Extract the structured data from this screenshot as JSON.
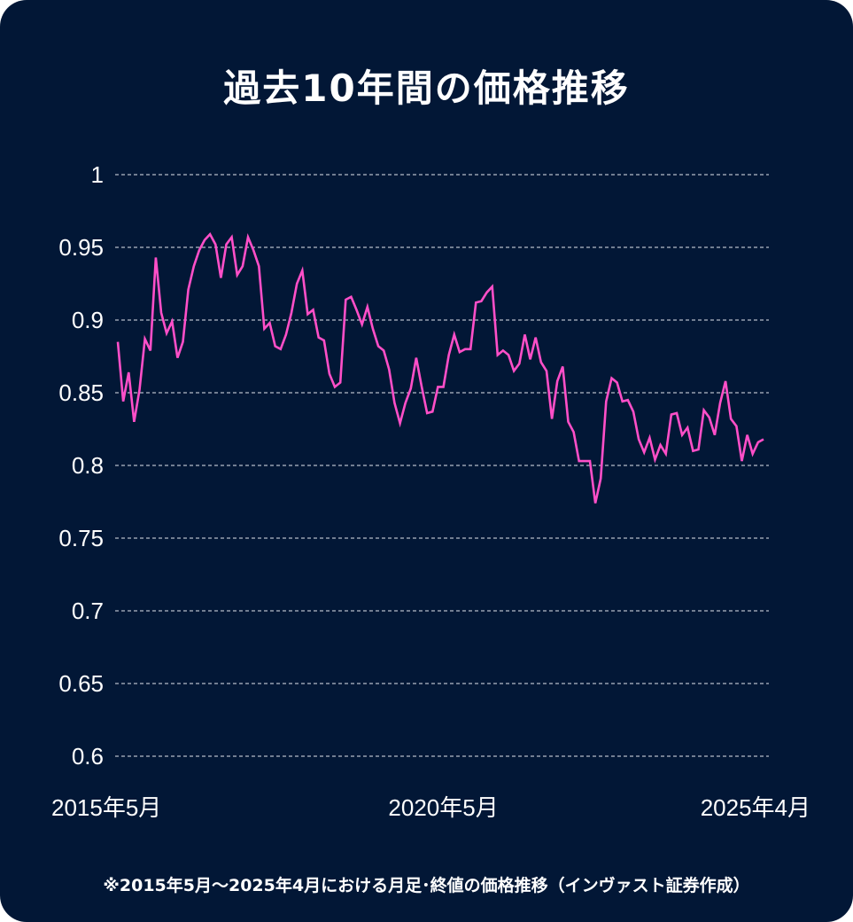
{
  "chart_data": {
    "type": "line",
    "title": "過去10年間の価格推移",
    "footnote": "※2015年5月～2025年4月における月足･終値の価格推移（インヴァスト証券作成）",
    "xlabel": "",
    "ylabel": "",
    "ylim": [
      0.6,
      1
    ],
    "yticks": [
      "1",
      "0.95",
      "0.9",
      "0.85",
      "0.8",
      "0.75",
      "0.7",
      "0.65",
      "0.6"
    ],
    "xticks": [
      {
        "label": "2015年5月",
        "at": "2015-05"
      },
      {
        "label": "2020年5月",
        "at": "2020-05"
      },
      {
        "label": "2025年4月",
        "at": "2025-04"
      }
    ],
    "grid": "horizontal dashed",
    "line_color": "#ff4fc8",
    "background_color": "#021736",
    "x_start": "2015-05",
    "x_end": "2025-04",
    "x_interval": "monthly",
    "values": [
      0.885,
      0.844,
      0.864,
      0.83,
      0.852,
      0.887,
      0.879,
      0.943,
      0.905,
      0.891,
      0.899,
      0.874,
      0.885,
      0.921,
      0.937,
      0.948,
      0.955,
      0.959,
      0.952,
      0.929,
      0.952,
      0.957,
      0.931,
      0.937,
      0.957,
      0.948,
      0.937,
      0.894,
      0.898,
      0.882,
      0.88,
      0.89,
      0.905,
      0.925,
      0.934,
      0.904,
      0.907,
      0.888,
      0.886,
      0.863,
      0.854,
      0.857,
      0.914,
      0.916,
      0.907,
      0.897,
      0.909,
      0.894,
      0.882,
      0.879,
      0.866,
      0.843,
      0.829,
      0.843,
      0.853,
      0.874,
      0.854,
      0.836,
      0.837,
      0.854,
      0.854,
      0.876,
      0.89,
      0.878,
      0.88,
      0.88,
      0.912,
      0.913,
      0.919,
      0.923,
      0.876,
      0.879,
      0.876,
      0.865,
      0.87,
      0.89,
      0.873,
      0.888,
      0.871,
      0.865,
      0.832,
      0.858,
      0.868,
      0.83,
      0.823,
      0.803,
      0.803,
      0.803,
      0.774,
      0.791,
      0.844,
      0.86,
      0.857,
      0.844,
      0.845,
      0.837,
      0.818,
      0.809,
      0.819,
      0.804,
      0.814,
      0.808,
      0.835,
      0.836,
      0.821,
      0.826,
      0.81,
      0.811,
      0.838,
      0.833,
      0.821,
      0.843,
      0.858,
      0.832,
      0.827,
      0.803,
      0.821,
      0.808,
      0.816,
      0.818
    ]
  }
}
